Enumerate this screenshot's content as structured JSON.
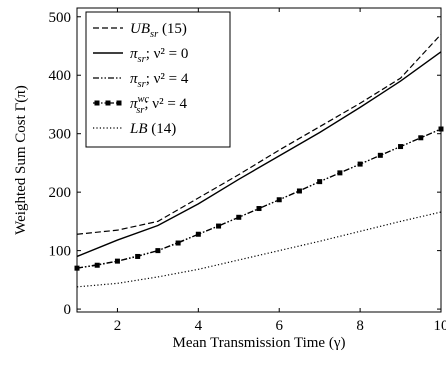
{
  "chart_data": {
    "type": "line",
    "title": "",
    "xlabel": "Mean Transmission Time (γ)",
    "ylabel": "Weighted Sum Cost Γ(π)",
    "xlim": [
      1,
      10
    ],
    "ylim": [
      -5,
      515
    ],
    "xticks": [
      2,
      4,
      6,
      8,
      10
    ],
    "yticks": [
      0,
      100,
      200,
      300,
      400,
      500
    ],
    "x_tick_labels": [
      "2",
      "4",
      "6",
      "8",
      "10"
    ],
    "y_tick_labels": [
      "0",
      "100",
      "200",
      "300",
      "400",
      "500"
    ],
    "grid": false,
    "legend_position": "top-left",
    "series": [
      {
        "name": "UB_sr (15)",
        "legend_label": {
          "main": "UB",
          "sub": "sr",
          "sup": "",
          "suffix": " (15)"
        },
        "style": "dashed",
        "color": "#000000",
        "x": [
          1,
          2,
          3,
          4,
          5,
          6,
          7,
          8,
          9,
          10
        ],
        "y": [
          128,
          135,
          150,
          190,
          230,
          272,
          312,
          352,
          395,
          470
        ]
      },
      {
        "name": "π_sr; ν² = 0",
        "legend_label": {
          "main": "π",
          "sub": "sr",
          "sup": "",
          "suffix": "; ν² = 0"
        },
        "style": "solid",
        "color": "#000000",
        "x": [
          1,
          2,
          3,
          4,
          5,
          6,
          7,
          8,
          9,
          10
        ],
        "y": [
          90,
          118,
          143,
          180,
          222,
          262,
          302,
          345,
          390,
          440
        ]
      },
      {
        "name": "π_sr; ν² = 4",
        "legend_label": {
          "main": "π",
          "sub": "sr",
          "sup": "",
          "suffix": "; ν² = 4"
        },
        "style": "dash-dot-dot",
        "color": "#000000",
        "x": [
          1,
          2,
          3,
          4,
          5,
          6,
          7,
          8,
          9,
          10
        ],
        "y": [
          70,
          82,
          100,
          128,
          157,
          187,
          218,
          248,
          278,
          308
        ]
      },
      {
        "name": "π_sr^wc; ν² = 4",
        "legend_label": {
          "main": "π",
          "sub": "sr",
          "sup": "wc",
          "suffix": "; ν² = 4"
        },
        "style": "dash-dot-dot",
        "marker": "square",
        "color": "#000000",
        "x": [
          1,
          1.5,
          2,
          2.5,
          3,
          3.5,
          4,
          4.5,
          5,
          5.5,
          6,
          6.5,
          7,
          7.5,
          8,
          8.5,
          9,
          9.5,
          10
        ],
        "y": [
          70,
          75,
          82,
          90,
          100,
          113,
          128,
          142,
          157,
          172,
          187,
          202,
          218,
          233,
          248,
          263,
          278,
          293,
          308
        ]
      },
      {
        "name": "LB (14)",
        "legend_label": {
          "main": "LB",
          "sub": "",
          "sup": "",
          "suffix": " (14)"
        },
        "style": "dotted",
        "color": "#000000",
        "x": [
          1,
          2,
          3,
          4,
          5,
          6,
          7,
          8,
          9,
          10
        ],
        "y": [
          38,
          44,
          55,
          68,
          84,
          100,
          116,
          133,
          150,
          166
        ]
      }
    ]
  }
}
